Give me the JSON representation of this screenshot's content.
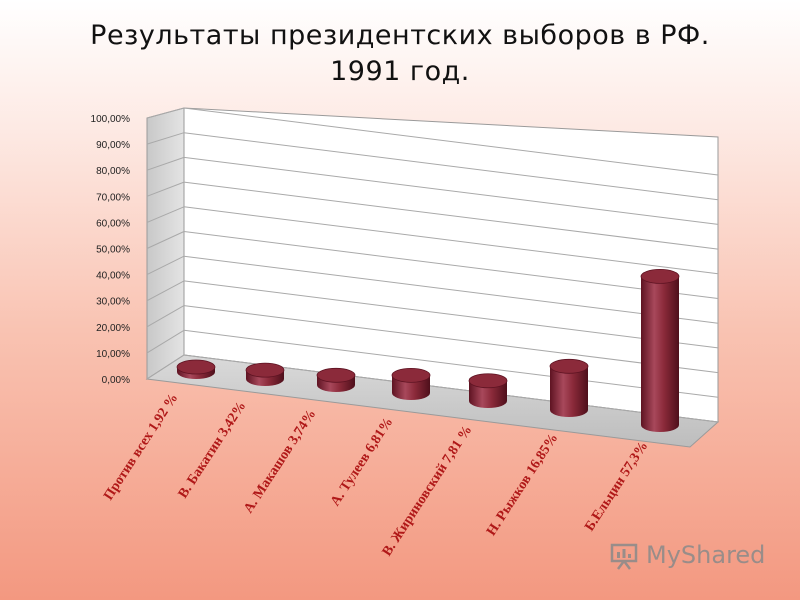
{
  "title": {
    "line1": "Результаты президентских выборов в РФ.",
    "line2": "1991 год."
  },
  "watermark": {
    "text": "MyShared",
    "icon": "presentation-board-icon"
  },
  "chart_data": {
    "type": "bar",
    "style": "3d-cylinder",
    "title": "Результаты президентских выборов в РФ. 1991 год.",
    "xlabel": "",
    "ylabel": "",
    "ylim": [
      0,
      100
    ],
    "yticks": [
      "0,00%",
      "10,00%",
      "20,00%",
      "30,00%",
      "40,00%",
      "50,00%",
      "60,00%",
      "70,00%",
      "80,00%",
      "90,00%",
      "100,00%"
    ],
    "grid": true,
    "categories": [
      "Против всех 1,92 %",
      "В. Бакатин 3,42%",
      "А. Макашов 3,74%",
      "А. Тулеев 6,81%",
      "В. Жириновский 7,81 %",
      "Н. Рыжков 16,85%",
      "Б.Ельцин 57,3%"
    ],
    "values": [
      1.92,
      3.42,
      3.74,
      6.81,
      7.81,
      16.85,
      57.3
    ],
    "colors": {
      "bar": "#8b2a3a",
      "bar_dark": "#5e1322",
      "bar_light": "#b8566a",
      "label": "#b01818",
      "grid": "#a9a9a9",
      "wall": "#ffffff",
      "floor": "#cfcfcf"
    }
  }
}
